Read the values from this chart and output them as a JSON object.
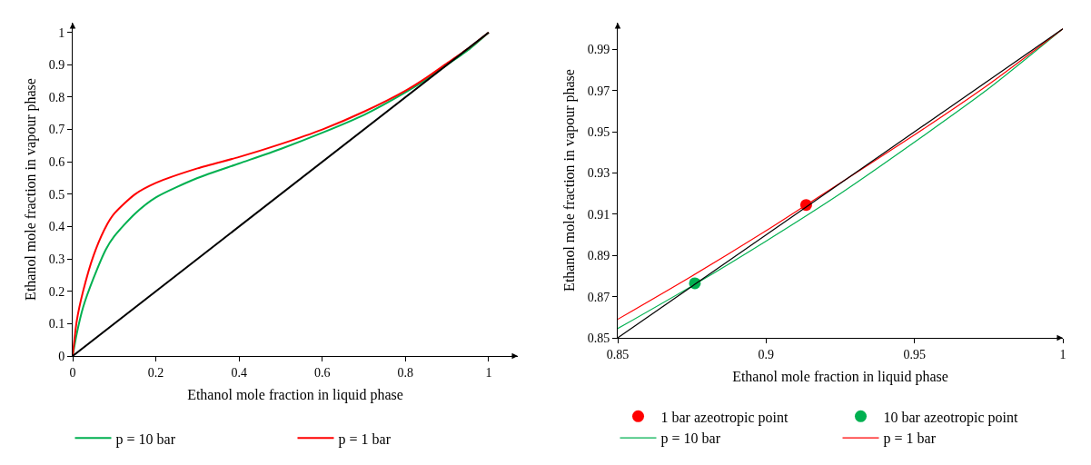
{
  "chart_data": [
    {
      "type": "line",
      "xlabel": "Ethanol mole fraction in liquid phase",
      "ylabel": "Ethanol mole fraction in vapour phase",
      "xlim": [
        0,
        1.07
      ],
      "ylim": [
        0,
        1.03
      ],
      "xticks": [
        0,
        0.2,
        0.4,
        0.6,
        0.8,
        1
      ],
      "yticks": [
        0,
        0.1,
        0.2,
        0.3,
        0.4,
        0.5,
        0.6,
        0.7,
        0.8,
        0.9,
        1
      ],
      "grid": false,
      "legend": "bottom",
      "marker": "none",
      "line_style": "solid",
      "series": [
        {
          "name": "p = 10 bar",
          "color": "#00b050",
          "x": [
            0,
            0.01,
            0.025,
            0.05,
            0.08,
            0.1,
            0.15,
            0.2,
            0.3,
            0.4,
            0.5,
            0.6,
            0.7,
            0.8,
            0.85,
            0.9,
            0.95,
            1
          ],
          "values": [
            0,
            0.07,
            0.15,
            0.24,
            0.33,
            0.37,
            0.44,
            0.49,
            0.55,
            0.595,
            0.64,
            0.69,
            0.745,
            0.815,
            0.855,
            0.9,
            0.945,
            1
          ]
        },
        {
          "name": "p = 1 bar",
          "color": "#ff0000",
          "x": [
            0,
            0.01,
            0.025,
            0.05,
            0.08,
            0.1,
            0.15,
            0.2,
            0.3,
            0.4,
            0.5,
            0.6,
            0.7,
            0.8,
            0.85,
            0.9,
            0.95,
            1
          ],
          "values": [
            0,
            0.11,
            0.2,
            0.31,
            0.4,
            0.44,
            0.5,
            0.535,
            0.58,
            0.615,
            0.655,
            0.7,
            0.755,
            0.82,
            0.86,
            0.905,
            0.95,
            1
          ]
        },
        {
          "color": "#000000",
          "x": [
            0,
            1
          ],
          "values": [
            0,
            1
          ]
        }
      ]
    },
    {
      "type": "line",
      "xlabel": "Ethanol mole fraction in liquid phase",
      "ylabel": "Ethanol mole fraction in vapour phase",
      "xlim": [
        0.85,
        1.0
      ],
      "ylim": [
        0.85,
        1.003
      ],
      "xticks": [
        0.85,
        0.9,
        0.95,
        1
      ],
      "yticks": [
        0.85,
        0.87,
        0.89,
        0.91,
        0.93,
        0.95,
        0.97,
        0.99
      ],
      "grid": false,
      "legend": "bottom",
      "marker": "none",
      "line_style": "solid",
      "series": [
        {
          "name": "1 bar azeotropic point",
          "type": "scatter",
          "marker": "circle",
          "color": "#ff0000",
          "x": [
            0.9135
          ],
          "values": [
            0.9145
          ]
        },
        {
          "name": "10 bar azeotropic point",
          "type": "scatter",
          "marker": "circle",
          "color": "#00b050",
          "x": [
            0.876
          ],
          "values": [
            0.8765
          ]
        },
        {
          "name": "p = 10 bar",
          "color": "#00b050",
          "x": [
            0.85,
            0.876,
            0.9,
            0.925,
            0.95,
            0.975,
            1
          ],
          "values": [
            0.8545,
            0.876,
            0.897,
            0.92,
            0.945,
            0.971,
            1
          ]
        },
        {
          "name": "p = 1 bar",
          "color": "#ff0000",
          "x": [
            0.85,
            0.875,
            0.9,
            0.9135,
            0.95,
            0.975,
            1
          ],
          "values": [
            0.859,
            0.88,
            0.902,
            0.9145,
            0.9485,
            0.973,
            1
          ]
        },
        {
          "color": "#000000",
          "x": [
            0.85,
            1
          ],
          "values": [
            0.85,
            1
          ]
        }
      ]
    }
  ]
}
